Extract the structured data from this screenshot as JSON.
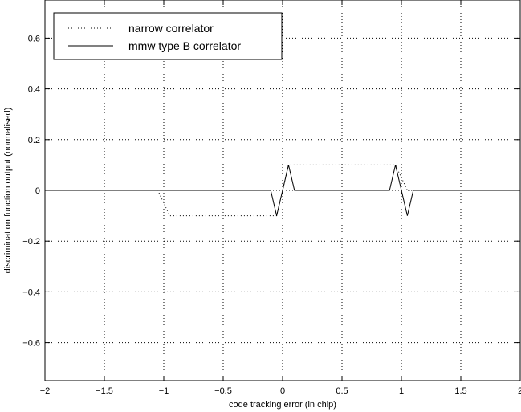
{
  "chart_data": {
    "type": "line",
    "title": "",
    "xlabel": "code tracking error (in chip)",
    "ylabel": "discrimination function output (normalised)",
    "xlim": [
      -2,
      2
    ],
    "ylim": [
      -0.75,
      0.75
    ],
    "xticks": [
      -2,
      -1.5,
      -1,
      -0.5,
      0,
      0.5,
      1,
      1.5,
      2
    ],
    "xtick_labels": [
      "−2",
      "−1.5",
      "−1",
      "−0.5",
      "0",
      "0.5",
      "1",
      "1.5",
      "2"
    ],
    "yticks": [
      0.6,
      0.4,
      0.2,
      0,
      -0.2,
      -0.4,
      -0.6
    ],
    "ytick_labels": [
      "0.6",
      "0.4",
      "0.2",
      "0",
      "−0.2",
      "−0.4",
      "−0.6"
    ],
    "grid": true,
    "legend_position": "top-left",
    "series": [
      {
        "name": "narrow correlator",
        "style": "dotted",
        "color": "#000000",
        "x": [
          -2,
          -1.05,
          -0.95,
          -0.05,
          0.05,
          0.95,
          1.05,
          2
        ],
        "y": [
          0,
          0,
          -0.1,
          -0.1,
          0.1,
          0.1,
          0,
          0
        ]
      },
      {
        "name": "mmw type B correlator",
        "style": "solid",
        "color": "#000000",
        "x": [
          -2,
          -0.1,
          -0.05,
          0.05,
          0.1,
          0.9,
          0.95,
          1.05,
          1.1,
          2
        ],
        "y": [
          0,
          0,
          -0.1,
          0.1,
          0,
          0,
          0.1,
          -0.1,
          0,
          0
        ]
      }
    ]
  }
}
